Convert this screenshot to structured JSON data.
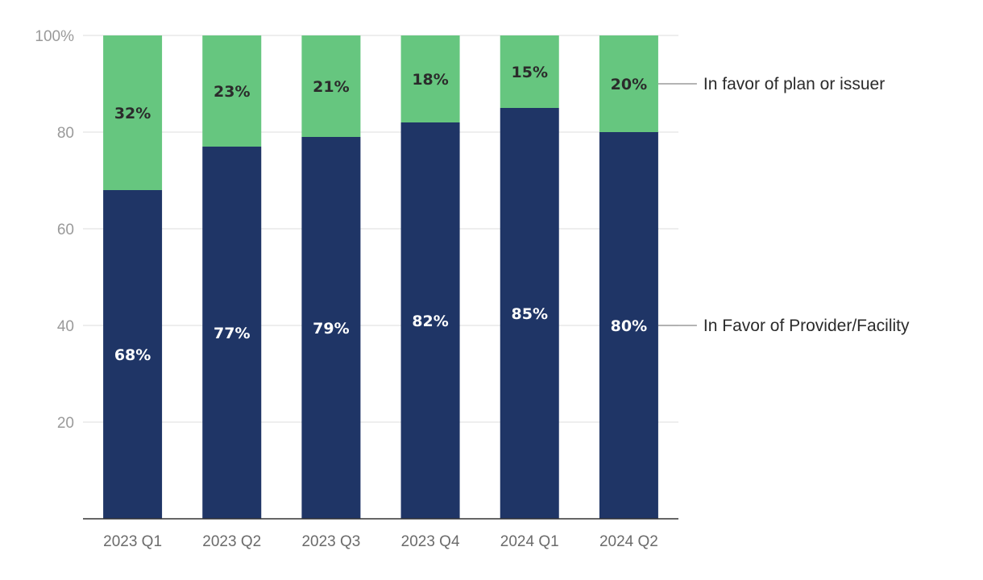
{
  "chart_data": {
    "type": "bar",
    "stacked": true,
    "categories": [
      "2023 Q1",
      "2023 Q2",
      "2023 Q3",
      "2023 Q4",
      "2024 Q1",
      "2024 Q2"
    ],
    "series": [
      {
        "name": "In Favor of Provider/Facility",
        "values": [
          68,
          77,
          79,
          82,
          85,
          80
        ],
        "labels": [
          "68%",
          "77%",
          "79%",
          "82%",
          "85%",
          "80%"
        ],
        "color": "#1f3566"
      },
      {
        "name": "In favor of plan or issuer",
        "values": [
          32,
          23,
          21,
          18,
          15,
          20
        ],
        "labels": [
          "32%",
          "23%",
          "21%",
          "18%",
          "15%",
          "20%"
        ],
        "color": "#66c67f"
      }
    ],
    "ylim": [
      0,
      100
    ],
    "yticks": [
      20,
      40,
      60,
      80,
      100
    ],
    "ytick_labels": [
      "20",
      "40",
      "60",
      "80",
      "100%"
    ],
    "grid": true,
    "legend": "right, direct labels"
  }
}
